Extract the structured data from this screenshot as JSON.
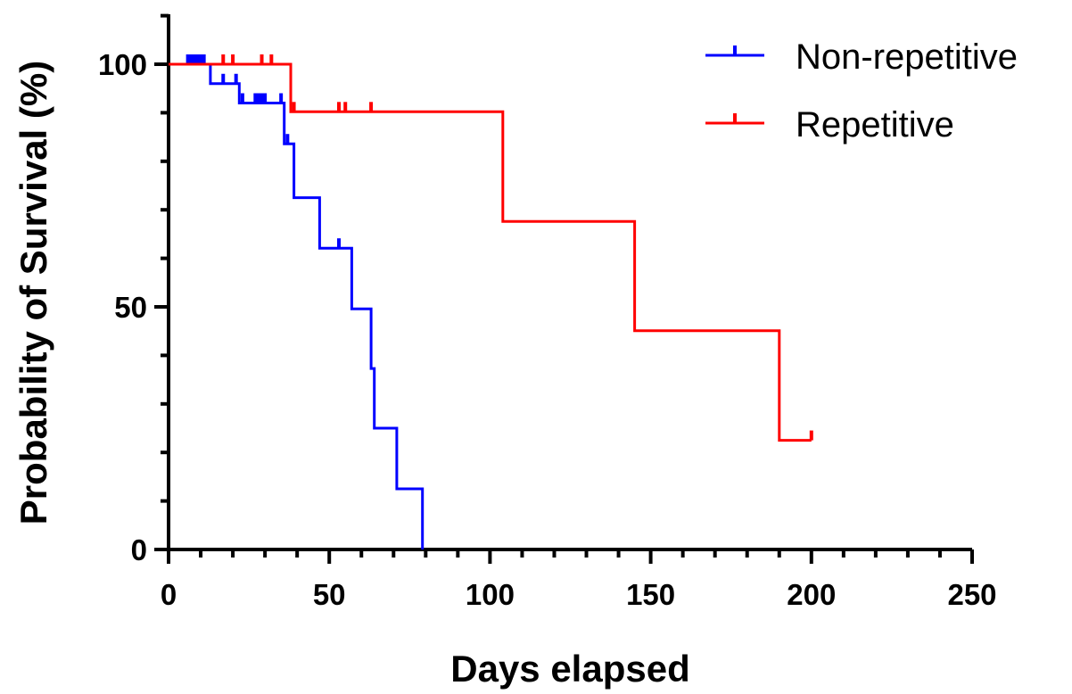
{
  "chart_data": {
    "type": "line",
    "title": "",
    "xlabel": "Days elapsed",
    "ylabel": "Probability of Survival (%)",
    "xlim": [
      0,
      250
    ],
    "ylim": [
      0,
      100
    ],
    "xticks": [
      "0",
      "50",
      "100",
      "150",
      "200",
      "250"
    ],
    "yticks": [
      "0",
      "50",
      "100"
    ],
    "grid": false,
    "legend_position": "top-right",
    "series": [
      {
        "name": "Non-repetitive",
        "color": "#0000ff",
        "steps": [
          [
            0,
            100
          ],
          [
            13,
            100
          ],
          [
            13,
            96
          ],
          [
            22,
            96
          ],
          [
            22,
            92
          ],
          [
            36,
            92
          ],
          [
            36,
            83.6
          ],
          [
            39,
            83.6
          ],
          [
            39,
            72.5
          ],
          [
            47,
            72.5
          ],
          [
            47,
            62.1
          ],
          [
            57,
            62.1
          ],
          [
            57,
            49.6
          ],
          [
            63,
            49.6
          ],
          [
            63,
            37.3
          ],
          [
            64,
            37.3
          ],
          [
            64,
            25
          ],
          [
            71,
            25
          ],
          [
            71,
            12.5
          ],
          [
            79,
            12.5
          ],
          [
            79,
            0
          ]
        ],
        "censored": [
          [
            6,
            100
          ],
          [
            7,
            100
          ],
          [
            8,
            100
          ],
          [
            9,
            100
          ],
          [
            10,
            100
          ],
          [
            11,
            100
          ],
          [
            17,
            96
          ],
          [
            21,
            96
          ],
          [
            23,
            92
          ],
          [
            27,
            92
          ],
          [
            28,
            92
          ],
          [
            29,
            92
          ],
          [
            30,
            92
          ],
          [
            35,
            92
          ],
          [
            37,
            83.6
          ],
          [
            53,
            62.1
          ]
        ]
      },
      {
        "name": "Repetitive",
        "color": "#ff0000",
        "steps": [
          [
            0,
            100
          ],
          [
            38,
            100
          ],
          [
            38,
            90.2
          ],
          [
            104,
            90.2
          ],
          [
            104,
            67.6
          ],
          [
            145,
            67.6
          ],
          [
            145,
            45.1
          ],
          [
            190,
            45.1
          ],
          [
            190,
            22.5
          ],
          [
            200,
            22.5
          ]
        ],
        "censored": [
          [
            17,
            100
          ],
          [
            20,
            100
          ],
          [
            29,
            100
          ],
          [
            32,
            100
          ],
          [
            39,
            90.2
          ],
          [
            53,
            90.2
          ],
          [
            55,
            90.2
          ],
          [
            63,
            90.2
          ],
          [
            200,
            22.5
          ]
        ]
      }
    ]
  }
}
